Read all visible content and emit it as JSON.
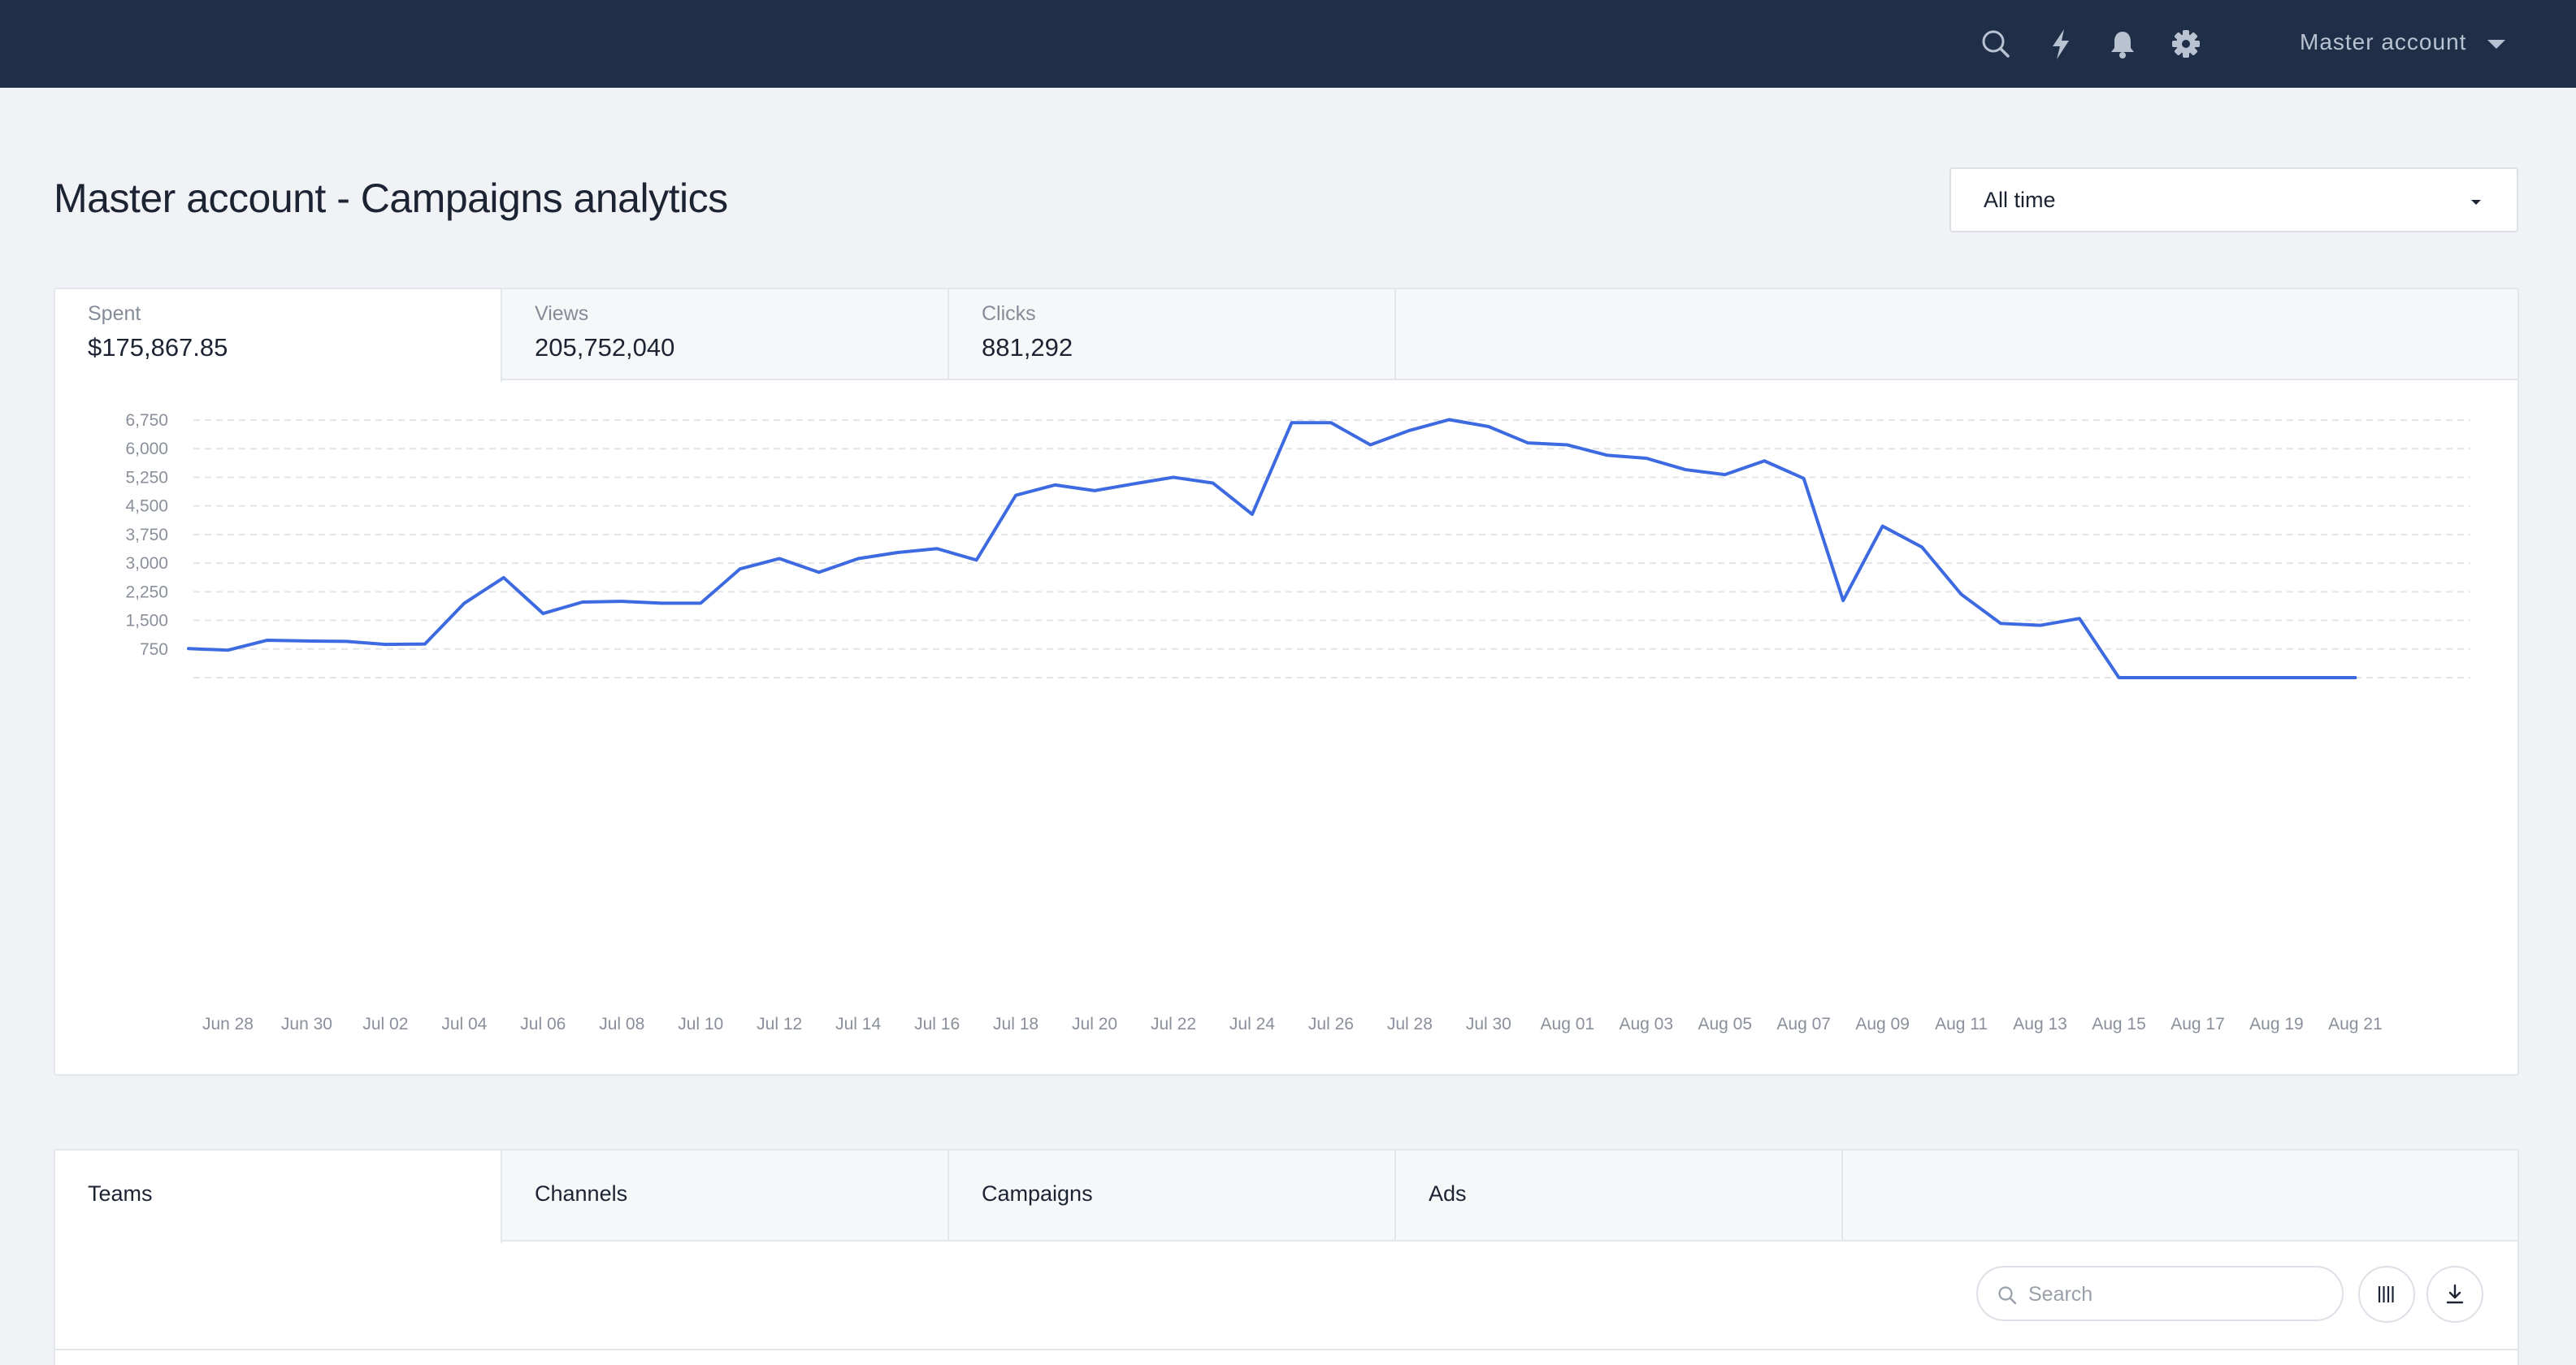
{
  "header": {
    "account_label": "Master account",
    "icons": [
      "search-icon",
      "lightning-icon",
      "bell-icon",
      "gear-icon",
      "caret-down-icon"
    ]
  },
  "page": {
    "title": "Master account - Campaigns analytics"
  },
  "date_range": {
    "selected": "All time"
  },
  "metrics": [
    {
      "label": "Spent",
      "value": "$175,867.85"
    },
    {
      "label": "Views",
      "value": "205,752,040"
    },
    {
      "label": "Clicks",
      "value": "881,292"
    }
  ],
  "chart_data": {
    "type": "line",
    "series_color": "#3d6ae0",
    "grid": "horizontal-dashed",
    "ylim": [
      0,
      6750
    ],
    "yticks": [
      750,
      1500,
      2250,
      3000,
      3750,
      4500,
      5250,
      6000,
      6750
    ],
    "ytick_labels": [
      "750",
      "1,500",
      "2,250",
      "3,000",
      "3,750",
      "4,500",
      "5,250",
      "6,000",
      "6,750"
    ],
    "x": [
      "Jun 27",
      "Jun 28",
      "Jun 29",
      "Jun 30",
      "Jul 01",
      "Jul 02",
      "Jul 03",
      "Jul 04",
      "Jul 05",
      "Jul 06",
      "Jul 07",
      "Jul 08",
      "Jul 09",
      "Jul 10",
      "Jul 11",
      "Jul 12",
      "Jul 13",
      "Jul 14",
      "Jul 15",
      "Jul 16",
      "Jul 17",
      "Jul 18",
      "Jul 19",
      "Jul 20",
      "Jul 21",
      "Jul 22",
      "Jul 23",
      "Jul 24",
      "Jul 25",
      "Jul 26",
      "Jul 27",
      "Jul 28",
      "Jul 29",
      "Jul 30",
      "Jul 31",
      "Aug 01",
      "Aug 02",
      "Aug 03",
      "Aug 04",
      "Aug 05",
      "Aug 06",
      "Aug 07",
      "Aug 08",
      "Aug 09",
      "Aug 10",
      "Aug 11",
      "Aug 12",
      "Aug 13",
      "Aug 14",
      "Aug 15",
      "Aug 16",
      "Aug 17",
      "Aug 18",
      "Aug 19",
      "Aug 20",
      "Aug 21"
    ],
    "xtick_labels": [
      "Jun 28",
      "Jun 30",
      "Jul 02",
      "Jul 04",
      "Jul 06",
      "Jul 08",
      "Jul 10",
      "Jul 12",
      "Jul 14",
      "Jul 16",
      "Jul 18",
      "Jul 20",
      "Jul 22",
      "Jul 24",
      "Jul 26",
      "Jul 28",
      "Jul 30",
      "Aug 01",
      "Aug 03",
      "Aug 05",
      "Aug 07",
      "Aug 09",
      "Aug 11",
      "Aug 13",
      "Aug 15",
      "Aug 17",
      "Aug 19",
      "Aug 21"
    ],
    "values": [
      760,
      720,
      980,
      960,
      950,
      870,
      880,
      1950,
      2620,
      1680,
      1980,
      2000,
      1950,
      1950,
      2850,
      3120,
      2760,
      3120,
      3280,
      3380,
      3080,
      4780,
      5050,
      4900,
      5080,
      5250,
      5100,
      4280,
      6680,
      6680,
      6100,
      6480,
      6760,
      6580,
      6150,
      6100,
      5830,
      5750,
      5450,
      5320,
      5680,
      5220,
      2020,
      3970,
      3420,
      2180,
      1420,
      1370,
      1550,
      0,
      0,
      0,
      0,
      0,
      0,
      0
    ]
  },
  "bottom_tabs": [
    "Teams",
    "Channels",
    "Campaigns",
    "Ads"
  ],
  "table_toolbar": {
    "search_placeholder": "Search",
    "icons": [
      "search-icon",
      "columns-icon",
      "download-icon"
    ]
  }
}
